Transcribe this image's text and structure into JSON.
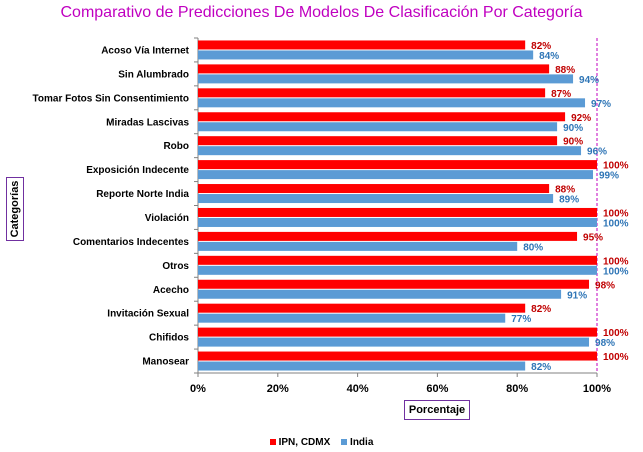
{
  "chart_data": {
    "type": "bar",
    "orientation": "horizontal",
    "title": "Comparativo de Predicciones De Modelos De Clasificación Por Categoría",
    "xlabel": "Porcentaje",
    "ylabel": "Categorías",
    "categories": [
      "Acoso Vía Internet",
      "Sin Alumbrado",
      "Tomar Fotos Sin Consentimiento",
      "Miradas Lascivas",
      "Robo",
      "Exposición Indecente",
      "Reporte Norte India",
      "Violación",
      "Comentarios Indecentes",
      "Otros",
      "Acecho",
      "Invitación Sexual",
      "Chifidos",
      "Manosear"
    ],
    "series": [
      {
        "name": "IPN, CDMX",
        "color": "#ff0000",
        "label_color": "#c00000",
        "values": [
          82,
          88,
          87,
          92,
          90,
          100,
          88,
          100,
          95,
          100,
          98,
          82,
          100,
          100
        ],
        "labels": [
          "82%",
          "88%",
          "87%",
          "92%",
          "90%",
          "100%",
          "88%",
          "100%",
          "95%",
          "100%",
          "98%",
          "82%",
          "100%",
          "100%"
        ]
      },
      {
        "name": "India",
        "color": "#5b9bd5",
        "label_color": "#2e75b6",
        "values": [
          84,
          94,
          97,
          90,
          96,
          99,
          89,
          100,
          80,
          100,
          91,
          77,
          98,
          82
        ],
        "labels": [
          "84%",
          "94%",
          "97%",
          "90%",
          "96%",
          "99%",
          "89%",
          "100%",
          "80%",
          "100%",
          "91%",
          "77%",
          "98%",
          "82%"
        ]
      }
    ],
    "xlim": [
      0,
      100
    ],
    "xticks": [
      "0%",
      "20%",
      "40%",
      "60%",
      "80%",
      "100%"
    ],
    "grid": false,
    "legend_position": "bottom"
  },
  "colors": {
    "title": "#c000c0",
    "frame": "#7030a0",
    "reference_line": "#c000c0"
  }
}
